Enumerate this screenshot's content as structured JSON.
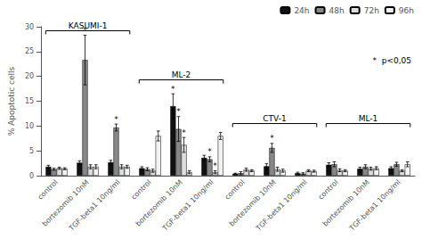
{
  "chart_data": {
    "type": "bar",
    "categories": [
      "control",
      "bortezomib 10nM",
      "TGF-beta1 10ng/ml",
      "control",
      "bortezomib 10nM",
      "TGF-beta1 10ng/ml",
      "control",
      "bortezomib 10nM",
      "TGF-beta1 10ng/ml",
      "control",
      "bortezomib 10nM",
      "TGF-beta1 10ng/ml"
    ],
    "series": [
      {
        "name": "24h",
        "color": "#111111",
        "values": [
          1.8,
          2.6,
          2.7,
          1.5,
          14.0,
          3.6,
          0.4,
          1.9,
          0.5,
          2.2,
          1.4,
          1.5
        ],
        "errors": [
          0.3,
          0.4,
          0.4,
          0.3,
          2.5,
          0.5,
          0.1,
          0.5,
          0.2,
          0.4,
          0.3,
          0.3
        ],
        "stars": [
          false,
          false,
          false,
          false,
          true,
          false,
          false,
          false,
          false,
          false,
          false,
          false
        ]
      },
      {
        "name": "48h",
        "color": "#888888",
        "values": [
          1.3,
          23.3,
          9.7,
          1.3,
          9.4,
          3.3,
          0.5,
          5.6,
          0.4,
          2.3,
          1.8,
          2.3
        ],
        "errors": [
          0.2,
          5.0,
          0.7,
          0.3,
          2.5,
          0.5,
          0.3,
          0.9,
          0.2,
          0.5,
          0.4,
          0.4
        ],
        "stars": [
          false,
          true,
          true,
          false,
          true,
          true,
          false,
          true,
          false,
          false,
          false,
          false
        ]
      },
      {
        "name": "72h",
        "color": "#dddddd",
        "values": [
          1.5,
          1.8,
          1.8,
          1.0,
          6.2,
          0.7,
          1.2,
          1.3,
          1.0,
          1.1,
          1.4,
          1.0
        ],
        "errors": [
          0.2,
          0.4,
          0.4,
          0.3,
          1.5,
          0.3,
          0.3,
          0.4,
          0.2,
          0.3,
          0.3,
          0.2
        ],
        "stars": [
          false,
          false,
          false,
          false,
          true,
          true,
          false,
          false,
          false,
          false,
          false,
          false
        ]
      },
      {
        "name": "96h",
        "color": "#f2f2f2",
        "values": [
          1.4,
          1.8,
          1.8,
          8.0,
          0.7,
          8.0,
          1.0,
          1.0,
          0.9,
          1.0,
          1.5,
          2.3
        ],
        "errors": [
          0.2,
          0.4,
          0.3,
          1.0,
          0.3,
          0.7,
          0.2,
          0.3,
          0.2,
          0.2,
          0.3,
          0.5
        ],
        "stars": [
          false,
          false,
          false,
          false,
          false,
          false,
          false,
          false,
          false,
          false,
          false,
          false
        ]
      }
    ],
    "star_label": "*",
    "ylabel": "% Apoptotic cells",
    "ylim": [
      0,
      30
    ],
    "yticks": [
      0,
      5,
      10,
      15,
      20,
      25,
      30
    ],
    "annotation": "*  p<0,05",
    "brackets": [
      {
        "label": "KASUMI-1",
        "from": 0,
        "to": 2,
        "y": 29.2
      },
      {
        "label": "ML-2",
        "from": 3,
        "to": 5,
        "y": 19.3
      },
      {
        "label": "CTV-1",
        "from": 6,
        "to": 8,
        "y": 10.5
      },
      {
        "label": "ML-1",
        "from": 9,
        "to": 11,
        "y": 10.5
      }
    ],
    "legend": "upper right",
    "grid": false
  }
}
